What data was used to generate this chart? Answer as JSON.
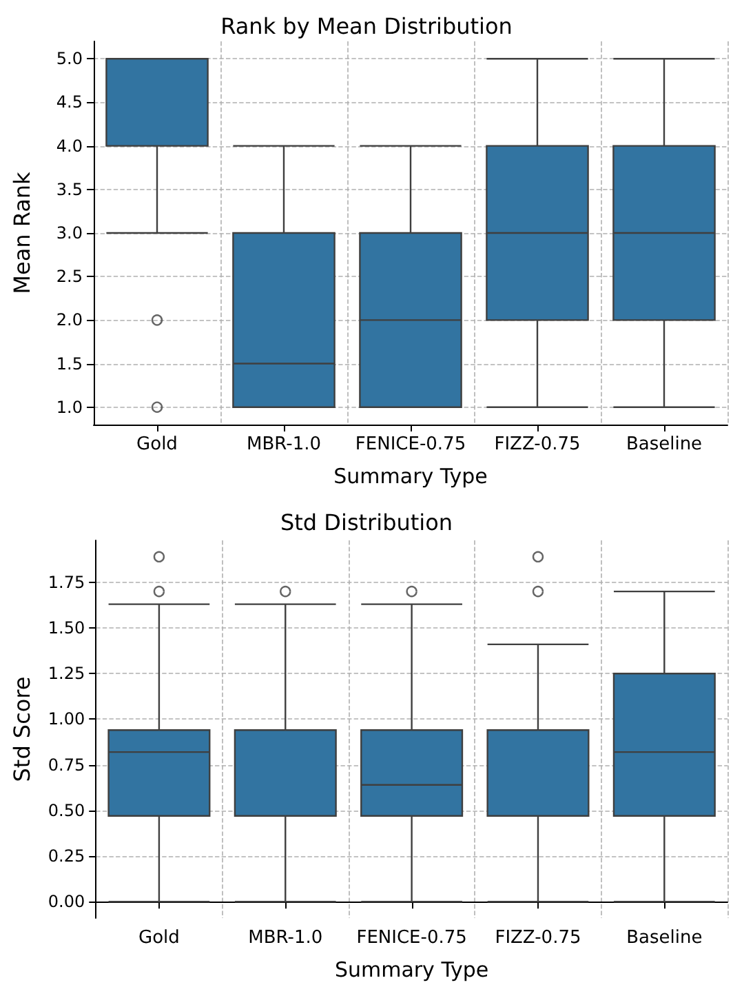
{
  "chart_data": [
    {
      "type": "box",
      "title": "Rank by Mean Distribution",
      "xlabel": "Summary Type",
      "ylabel": "Mean Rank",
      "categories": [
        "Gold",
        "MBR-1.0",
        "FENICE-0.75",
        "FIZZ-0.75",
        "Baseline"
      ],
      "series": [
        {
          "color": "#3274a1",
          "boxes": [
            {
              "low": 3,
              "q1": 4,
              "median": 5,
              "q3": 5,
              "high": 5,
              "outliers": [
                2,
                1
              ]
            },
            {
              "low": 1,
              "q1": 1,
              "median": 1.5,
              "q3": 3,
              "high": 4
            },
            {
              "low": 1,
              "q1": 1,
              "median": 2,
              "q3": 3,
              "high": 4
            },
            {
              "low": 1,
              "q1": 2,
              "median": 3,
              "q3": 4,
              "high": 5
            },
            {
              "low": 1,
              "q1": 2,
              "median": 3,
              "q3": 4,
              "high": 5
            }
          ]
        }
      ],
      "ylim": [
        0.8,
        5.2
      ],
      "yticks": [
        {
          "value": 1,
          "label": "1.0"
        },
        {
          "value": 1.5,
          "label": "1.5"
        },
        {
          "value": 2,
          "label": "2.0"
        },
        {
          "value": 2.5,
          "label": "2.5"
        },
        {
          "value": 3,
          "label": "3.0"
        },
        {
          "value": 3.5,
          "label": "3.5"
        },
        {
          "value": 4,
          "label": "4.0"
        },
        {
          "value": 4.5,
          "label": "4.5"
        },
        {
          "value": 5,
          "label": "5.0"
        }
      ],
      "grid": true
    },
    {
      "type": "box",
      "title": "Std Distribution",
      "xlabel": "Summary Type",
      "ylabel": "Std Score",
      "categories": [
        "Gold",
        "MBR-1.0",
        "FENICE-0.75",
        "FIZZ-0.75",
        "Baseline"
      ],
      "series": [
        {
          "color": "#3274a1",
          "boxes": [
            {
              "low": 0,
              "q1": 0.47,
              "median": 0.82,
              "q3": 0.94,
              "high": 1.63,
              "outliers": [
                1.7,
                1.89
              ]
            },
            {
              "low": 0,
              "q1": 0.47,
              "median": 0.47,
              "q3": 0.94,
              "high": 1.63,
              "outliers": [
                1.7
              ]
            },
            {
              "low": 0,
              "q1": 0.47,
              "median": 0.64,
              "q3": 0.94,
              "high": 1.63,
              "outliers": [
                1.7
              ]
            },
            {
              "low": 0,
              "q1": 0.47,
              "median": 0.47,
              "q3": 0.94,
              "high": 1.41,
              "outliers": [
                1.7,
                1.89
              ]
            },
            {
              "low": 0,
              "q1": 0.47,
              "median": 0.82,
              "q3": 1.25,
              "high": 1.7
            }
          ]
        }
      ],
      "ylim": [
        -0.09,
        1.98
      ],
      "yticks": [
        {
          "value": 0,
          "label": "0.00"
        },
        {
          "value": 0.25,
          "label": "0.25"
        },
        {
          "value": 0.5,
          "label": "0.50"
        },
        {
          "value": 0.75,
          "label": "0.75"
        },
        {
          "value": 1,
          "label": "1.00"
        },
        {
          "value": 1.25,
          "label": "1.25"
        },
        {
          "value": 1.5,
          "label": "1.50"
        },
        {
          "value": 1.75,
          "label": "1.75"
        }
      ],
      "grid": true
    }
  ]
}
